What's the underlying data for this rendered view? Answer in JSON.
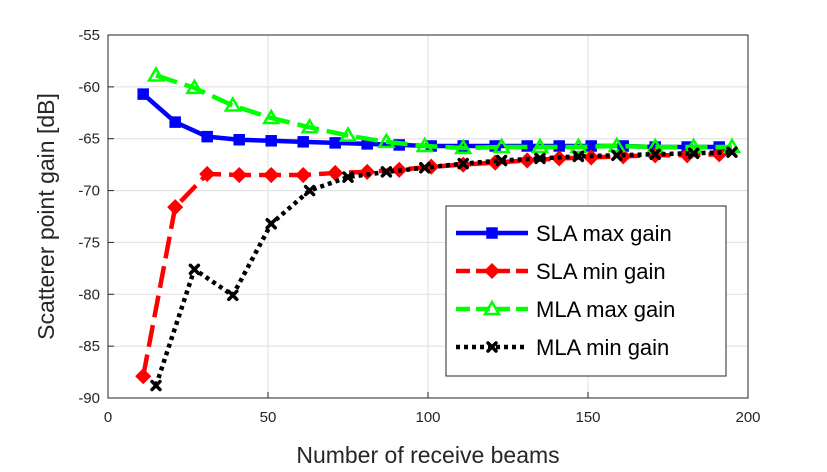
{
  "chart_data": {
    "type": "line",
    "title": "",
    "xlabel": "Number of receive beams",
    "ylabel": "Scatterer point gain [dB]",
    "xlim": [
      0,
      200
    ],
    "ylim": [
      -90,
      -55
    ],
    "xticks": [
      0,
      50,
      100,
      150,
      200
    ],
    "yticks": [
      -55,
      -60,
      -65,
      -70,
      -75,
      -80,
      -85,
      -90
    ],
    "grid": true,
    "legend_position": "bottom-right",
    "series": [
      {
        "name": "SLA max gain",
        "color": "#0000ff",
        "line_style": "solid",
        "marker": "square",
        "x": [
          11,
          21,
          31,
          41,
          51,
          61,
          71,
          81,
          91,
          101,
          111,
          121,
          131,
          141,
          151,
          161,
          171,
          181,
          191
        ],
        "y": [
          -60.7,
          -63.4,
          -64.8,
          -65.1,
          -65.2,
          -65.3,
          -65.4,
          -65.5,
          -65.6,
          -65.7,
          -65.7,
          -65.7,
          -65.7,
          -65.7,
          -65.7,
          -65.7,
          -65.8,
          -65.8,
          -65.8
        ]
      },
      {
        "name": "SLA min gain",
        "color": "#ff0000",
        "line_style": "dashed",
        "marker": "diamond",
        "x": [
          11,
          21,
          31,
          41,
          51,
          61,
          71,
          81,
          91,
          101,
          111,
          121,
          131,
          141,
          151,
          161,
          171,
          181,
          191
        ],
        "y": [
          -87.9,
          -71.6,
          -68.4,
          -68.5,
          -68.5,
          -68.5,
          -68.3,
          -68.2,
          -68.0,
          -67.7,
          -67.5,
          -67.3,
          -67.1,
          -66.9,
          -66.8,
          -66.7,
          -66.6,
          -66.6,
          -66.5
        ]
      },
      {
        "name": "MLA max gain",
        "color": "#00ff00",
        "line_style": "dashed",
        "marker": "triangle",
        "x": [
          15,
          27,
          39,
          51,
          63,
          75,
          87,
          99,
          111,
          123,
          135,
          147,
          159,
          171,
          183,
          195
        ],
        "y": [
          -58.9,
          -60.1,
          -61.8,
          -63.0,
          -63.9,
          -64.7,
          -65.3,
          -65.7,
          -65.9,
          -65.8,
          -65.8,
          -65.8,
          -65.7,
          -65.8,
          -65.8,
          -65.8
        ]
      },
      {
        "name": "MLA min gain",
        "color": "#000000",
        "line_style": "dotted",
        "marker": "x",
        "x": [
          15,
          27,
          39,
          51,
          63,
          75,
          87,
          99,
          111,
          123,
          135,
          147,
          159,
          171,
          183,
          195
        ],
        "y": [
          -88.8,
          -77.6,
          -80.1,
          -73.2,
          -70.0,
          -68.7,
          -68.2,
          -67.8,
          -67.4,
          -67.1,
          -66.9,
          -66.7,
          -66.6,
          -66.5,
          -66.4,
          -66.3
        ]
      }
    ]
  }
}
